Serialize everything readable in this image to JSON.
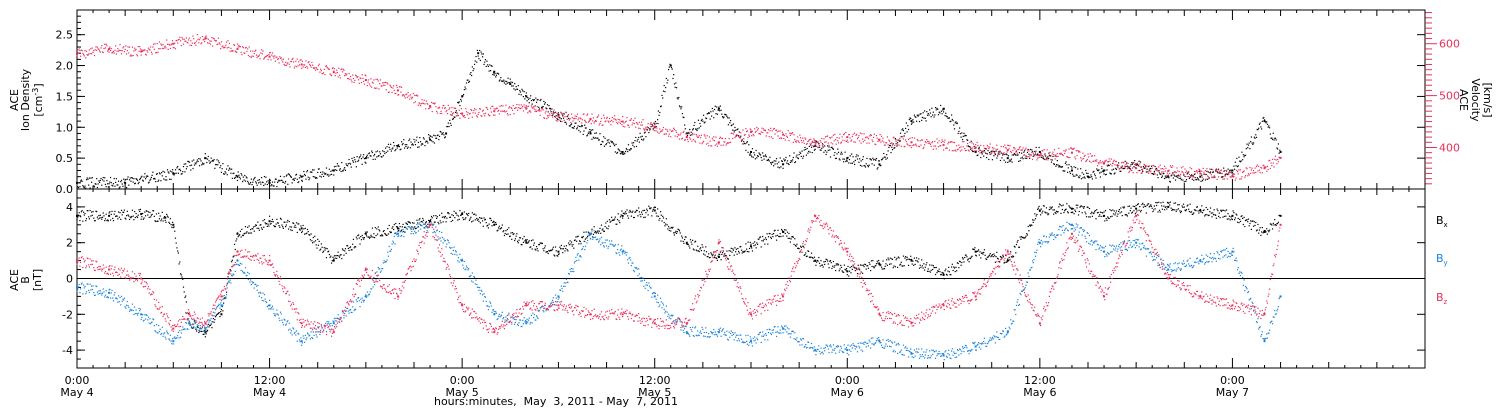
{
  "chart_data": [
    {
      "type": "scatter",
      "panel": "top",
      "ylabel": {
        "line1": "ACE",
        "line2": "Ion Density",
        "units_base": "[cm",
        "units_sup": "-3",
        "units_end": "]"
      },
      "y2label": {
        "line1": "ACE",
        "line2": "Velocity",
        "units": "[km/s]"
      },
      "ylim": [
        0,
        2.9
      ],
      "y2lim": [
        320,
        665
      ],
      "yticks": [
        0.0,
        0.5,
        1.0,
        1.5,
        2.0,
        2.5
      ],
      "ytick_labels": [
        "0.0",
        "0.5",
        "1.0",
        "1.5",
        "2.0",
        "2.5"
      ],
      "y2ticks": [
        400,
        500,
        600
      ],
      "y2tick_labels": [
        "400",
        "500",
        "600"
      ],
      "series": [
        {
          "color": "#000000",
          "axis": "left",
          "x_hours": [
            0,
            3,
            6,
            8,
            10,
            12,
            14,
            16,
            18,
            20,
            22,
            23,
            24,
            25,
            26,
            27,
            28,
            30,
            32,
            34,
            36,
            37,
            38,
            40,
            42,
            44,
            46,
            48,
            50,
            52,
            54,
            56,
            58,
            60,
            62,
            63,
            64,
            66,
            68,
            70,
            72,
            74,
            75
          ],
          "values": [
            0.1,
            0.1,
            0.25,
            0.5,
            0.2,
            0.1,
            0.2,
            0.3,
            0.5,
            0.7,
            0.8,
            0.9,
            1.5,
            2.2,
            1.9,
            1.7,
            1.5,
            1.2,
            0.9,
            0.6,
            1.0,
            2.0,
            0.9,
            1.3,
            0.6,
            0.4,
            0.7,
            0.5,
            0.4,
            1.1,
            1.3,
            0.6,
            0.5,
            0.6,
            0.3,
            0.2,
            0.3,
            0.4,
            0.2,
            0.2,
            0.3,
            1.1,
            0.6
          ]
        },
        {
          "color": "#e8305a",
          "axis": "right",
          "x_hours": [
            0,
            2,
            4,
            6,
            8,
            10,
            12,
            14,
            16,
            18,
            20,
            22,
            24,
            26,
            28,
            30,
            32,
            34,
            36,
            38,
            40,
            42,
            44,
            46,
            48,
            50,
            52,
            54,
            56,
            58,
            60,
            62,
            64,
            66,
            68,
            70,
            72,
            74,
            75
          ],
          "values": [
            580,
            590,
            585,
            600,
            610,
            590,
            575,
            560,
            545,
            530,
            510,
            480,
            465,
            470,
            475,
            460,
            455,
            450,
            440,
            420,
            410,
            430,
            425,
            410,
            420,
            415,
            410,
            405,
            400,
            395,
            385,
            390,
            370,
            360,
            355,
            350,
            345,
            360,
            380
          ]
        }
      ]
    },
    {
      "type": "scatter",
      "panel": "bottom",
      "ylabel": {
        "line1": "ACE",
        "line2": "B",
        "units": "[nT]"
      },
      "ylim": [
        -5.0,
        5.0
      ],
      "yticks": [
        -4,
        -2,
        0,
        2,
        4
      ],
      "ytick_labels": [
        "-4",
        "-2",
        "0",
        "2",
        "4"
      ],
      "zero_line": true,
      "legend_position": "right",
      "series": [
        {
          "name": "Bx",
          "name_base": "B",
          "name_sub": "x",
          "color": "#000000",
          "x_hours": [
            0,
            2,
            4,
            5.5,
            6,
            7,
            8,
            9,
            10,
            12,
            14,
            16,
            18,
            20,
            22,
            24,
            26,
            28,
            30,
            32,
            34,
            36,
            38,
            40,
            42,
            44,
            46,
            48,
            50,
            52,
            54,
            56,
            58,
            60,
            62,
            64,
            66,
            68,
            70,
            72,
            74,
            75
          ],
          "values": [
            3.5,
            3.5,
            3.6,
            3.4,
            3.0,
            -2.5,
            -3.0,
            -2.0,
            2.5,
            3.2,
            2.8,
            1.0,
            2.5,
            2.8,
            3.2,
            3.6,
            3.0,
            2.0,
            1.5,
            2.5,
            3.5,
            3.8,
            2.0,
            1.2,
            1.8,
            2.6,
            1.0,
            0.4,
            0.8,
            1.0,
            0.2,
            1.5,
            1.0,
            3.8,
            3.9,
            3.5,
            3.9,
            4.0,
            3.8,
            3.5,
            2.6,
            3.5
          ]
        },
        {
          "name": "By",
          "name_base": "B",
          "name_sub": "y",
          "color": "#1a82d8",
          "x_hours": [
            0,
            2,
            4,
            6,
            7,
            8,
            9,
            10,
            12,
            14,
            16,
            18,
            20,
            22,
            24,
            26,
            28,
            30,
            32,
            34,
            36,
            38,
            40,
            42,
            44,
            46,
            48,
            50,
            52,
            54,
            56,
            58,
            60,
            62,
            64,
            66,
            68,
            70,
            72,
            74,
            75
          ],
          "values": [
            -0.5,
            -0.8,
            -2.0,
            -3.5,
            -2.5,
            -2.8,
            -1.5,
            1.0,
            -1.5,
            -3.5,
            -2.5,
            -1.0,
            2.5,
            3.0,
            1.0,
            -2.0,
            -2.5,
            -1.0,
            2.5,
            1.5,
            -1.0,
            -3.0,
            -3.0,
            -3.5,
            -2.8,
            -4.0,
            -4.0,
            -3.5,
            -4.2,
            -4.3,
            -3.8,
            -3.0,
            2.0,
            3.0,
            1.5,
            2.0,
            0.5,
            1.0,
            1.5,
            -3.5,
            -1.0
          ]
        },
        {
          "name": "Bz",
          "name_base": "B",
          "name_sub": "z",
          "color": "#e8305a",
          "x_hours": [
            0,
            2,
            4,
            6,
            7,
            8,
            9,
            10,
            12,
            14,
            16,
            18,
            20,
            22,
            24,
            26,
            28,
            30,
            32,
            34,
            36,
            38,
            40,
            42,
            44,
            46,
            48,
            50,
            52,
            54,
            56,
            58,
            60,
            62,
            64,
            66,
            68,
            70,
            72,
            74,
            75
          ],
          "values": [
            1.0,
            0.5,
            0.0,
            -2.8,
            -2.0,
            -2.5,
            -1.0,
            1.5,
            1.0,
            -2.5,
            -3.0,
            0.5,
            -1.0,
            3.0,
            -1.5,
            -3.0,
            -1.5,
            -1.5,
            -2.0,
            -2.0,
            -2.5,
            -2.5,
            2.0,
            -2.0,
            -1.0,
            3.5,
            1.5,
            -2.0,
            -2.5,
            -1.5,
            -1.0,
            1.5,
            -2.5,
            2.5,
            -1.0,
            3.5,
            0.0,
            -1.0,
            -1.5,
            -2.0,
            3.0
          ]
        }
      ]
    }
  ],
  "x_axis": {
    "xlim_hours": [
      0,
      84
    ],
    "major_ticks_hours": [
      0,
      12,
      24,
      36,
      48,
      60,
      72
    ],
    "tick_time_labels": [
      "0:00",
      "12:00",
      "0:00",
      "12:00",
      "0:00",
      "12:00",
      "0:00"
    ],
    "tick_date_labels": [
      "May 4",
      "May 4",
      "May 5",
      "May 5",
      "May 6",
      "May 6",
      "May 7"
    ],
    "title": "hours:minutes,  May  3, 2011 - May  7, 2011"
  }
}
